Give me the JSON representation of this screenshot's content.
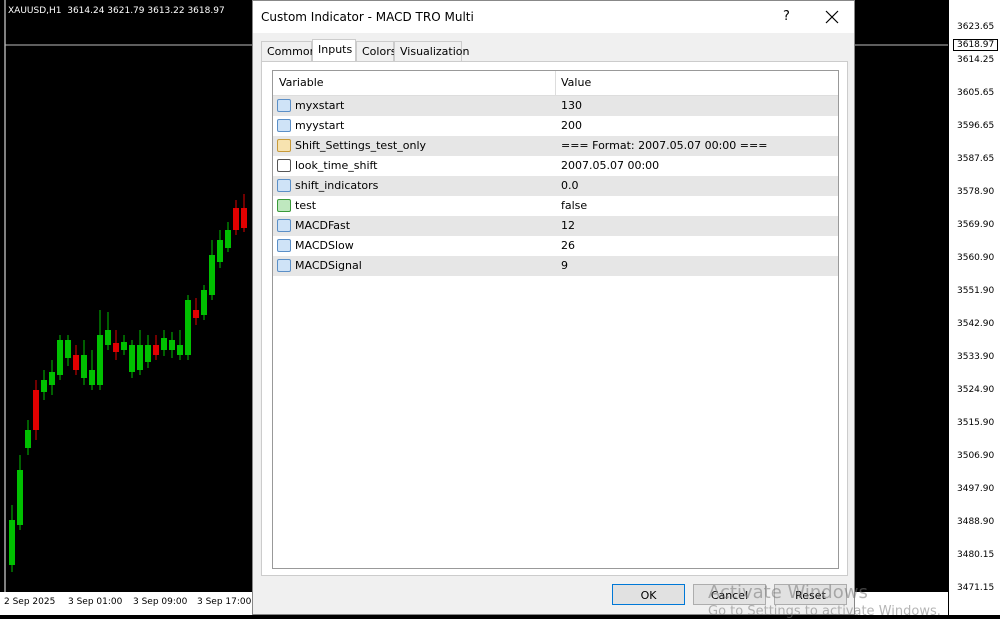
{
  "chart_header": "XAUUSD,H1  3614.24 3621.79 3613.22 3618.97",
  "price_axis": [
    "3623.65",
    "3614.25",
    "3605.65",
    "3596.65",
    "3587.65",
    "3578.90",
    "3569.90",
    "3560.90",
    "3551.90",
    "3542.90",
    "3533.90",
    "3524.90",
    "3515.90",
    "3506.90",
    "3497.90",
    "3488.90",
    "3480.15",
    "3471.15"
  ],
  "current_price": "3618.97",
  "time_axis": [
    "2 Sep 2025",
    "3 Sep 01:00",
    "3 Sep 09:00",
    "3 Sep 17:00"
  ],
  "dialog": {
    "title": "Custom Indicator - MACD TRO Multi",
    "help": "?",
    "tabs": [
      "Common",
      "Inputs",
      "Colors",
      "Visualization"
    ],
    "table": {
      "header": [
        "Variable",
        "Value"
      ],
      "rows": [
        [
          "myxstart",
          "130"
        ],
        [
          "myystart",
          "200"
        ],
        [
          "Shift_Settings_test_only",
          "=== Format: 2007.05.07 00:00 ==="
        ],
        [
          "look_time_shift",
          "2007.05.07 00:00"
        ],
        [
          "shift_indicators",
          "0.0"
        ],
        [
          "test",
          "false"
        ],
        [
          "MACDFast",
          "12"
        ],
        [
          "MACDSlow",
          "26"
        ],
        [
          "MACDSignal",
          "9"
        ]
      ]
    },
    "buttons": [
      "OK",
      "Cancel",
      "Reset"
    ]
  },
  "watermark": [
    "Activate Windows",
    "Go to Settings to activate Windows."
  ]
}
